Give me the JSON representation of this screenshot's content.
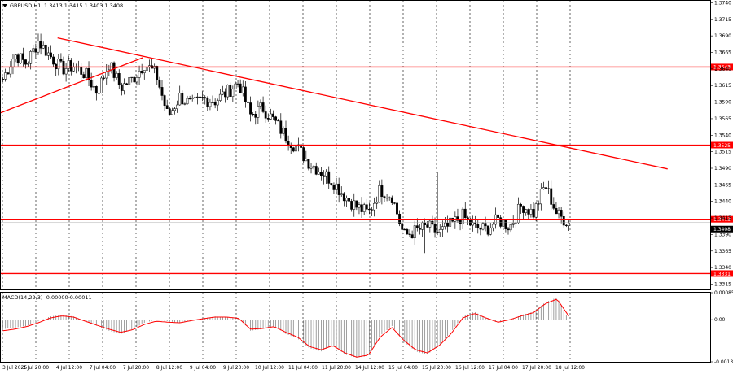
{
  "header": {
    "symbol_label": "GBPUSD,H1",
    "ohlc": "1.3413 1.3415 1.3403 1.3408"
  },
  "macd_panel": {
    "label": "MACD(14,22,3) -0.00000 0.00011"
  },
  "colors": {
    "background": "#ffffff",
    "candles": "#000000",
    "levels": "#ff0000",
    "signal": "#ff0000",
    "grid": "#000000",
    "price_tag": "#000000"
  },
  "chart_data": [
    {
      "type": "candlestick",
      "title": "GBPUSD,H1",
      "ylim": [
        1.3307,
        1.3743
      ],
      "y_ticks": [
        "1.3740",
        "1.3715",
        "1.3690",
        "1.3665",
        "1.3640",
        "1.3615",
        "1.3590",
        "1.3565",
        "1.3540",
        "1.3515",
        "1.3490",
        "1.3465",
        "1.3440",
        "1.3415",
        "1.3390",
        "1.3365",
        "1.3340",
        "1.3315"
      ],
      "x_ticks": [
        "3 Jul 2025",
        "3 Jul 20:00",
        "4 Jul 12:00",
        "7 Jul 04:00",
        "7 Jul 20:00",
        "8 Jul 12:00",
        "9 Jul 04:00",
        "9 Jul 20:00",
        "10 Jul 12:00",
        "11 Jul 04:00",
        "11 Jul 20:00",
        "14 Jul 12:00",
        "15 Jul 04:00",
        "15 Jul 20:00",
        "16 Jul 12:00",
        "17 Jul 04:00",
        "17 Jul 20:00",
        "18 Jul 12:00"
      ],
      "path": [
        1.3625,
        1.3662,
        1.3648,
        1.3682,
        1.366,
        1.364,
        1.3645,
        1.3632,
        1.3605,
        1.3648,
        1.3612,
        1.3625,
        1.3648,
        1.3632,
        1.3568,
        1.3598,
        1.3585,
        1.3595,
        1.3592,
        1.3605,
        1.362,
        1.357,
        1.3582,
        1.3562,
        1.3538,
        1.352,
        1.3498,
        1.3485,
        1.347,
        1.3448,
        1.3432,
        1.3422,
        1.3458,
        1.3448,
        1.3388,
        1.3395,
        1.3402,
        1.3392,
        1.3405,
        1.3418,
        1.34,
        1.3398,
        1.3412,
        1.3402,
        1.3435,
        1.3422,
        1.3465,
        1.342,
        1.3408
      ],
      "spikes": [
        {
          "index": 37,
          "high": 1.3485
        },
        {
          "index": 36,
          "low": 1.3362
        }
      ],
      "horizontal_levels": [
        {
          "label": "1.3643",
          "value": 1.3643
        },
        {
          "label": "1.3525",
          "value": 1.3525
        },
        {
          "label": "1.3413",
          "value": 1.3413
        },
        {
          "label": "1.3331",
          "value": 1.3331
        }
      ],
      "current_price": {
        "label": "1.3408",
        "value": 1.3408
      },
      "trendlines": [
        {
          "from": {
            "x_fraction": 0.0,
            "value": 1.3574
          },
          "to": {
            "x_fraction": 0.2,
            "value": 1.3657
          }
        },
        {
          "from": {
            "x_fraction": 0.08,
            "value": 1.3687
          },
          "to": {
            "x_fraction": 0.94,
            "value": 1.3489
          }
        }
      ]
    },
    {
      "type": "macd",
      "title": "MACD(14,22,3)",
      "ylim": [
        -0.00133,
        0.00085
      ],
      "y_ticks": [
        "0.00085",
        "0.00",
        "-0.00133"
      ],
      "histogram": [
        -0.0003,
        -0.00025,
        -0.0002,
        -5e-05,
        0.0001,
        0.00015,
        0.0001,
        -5e-05,
        -0.0002,
        -0.00035,
        -0.00045,
        -0.0003,
        -0.0001,
        0.0,
        -5e-05,
        -0.0001,
        -2e-05,
        5e-05,
        0.0001,
        8e-05,
        5e-05,
        -0.00035,
        -0.0003,
        -0.0002,
        -0.00045,
        -0.0006,
        -0.0009,
        -0.001,
        -0.0008,
        -0.0011,
        -0.0012,
        -0.00115,
        -0.0005,
        -0.0002,
        -0.0007,
        -0.001,
        -0.0011,
        -0.0008,
        -0.0004,
        0.0001,
        0.00025,
        5e-05,
        -0.0001,
        0.0,
        0.00015,
        0.00025,
        0.00055,
        0.0007,
        0.0
      ],
      "signal": [
        -0.00035,
        -0.0003,
        -0.00022,
        -0.0001,
        5e-05,
        0.00012,
        8e-05,
        -5e-05,
        -0.00018,
        -0.0003,
        -0.0004,
        -0.00032,
        -0.00015,
        -5e-05,
        -8e-05,
        -0.0001,
        -3e-05,
        3e-05,
        8e-05,
        8e-05,
        4e-05,
        -0.0003,
        -0.00028,
        -0.00022,
        -0.0004,
        -0.00055,
        -0.00085,
        -0.00095,
        -0.00082,
        -0.00105,
        -0.00118,
        -0.00112,
        -0.00055,
        -0.00025,
        -0.00065,
        -0.00095,
        -0.00105,
        -0.00082,
        -0.00045,
        5e-05,
        0.0002,
        5e-05,
        -8e-05,
        0.0,
        0.00012,
        0.00022,
        0.0005,
        0.00065,
        0.00011
      ]
    }
  ]
}
